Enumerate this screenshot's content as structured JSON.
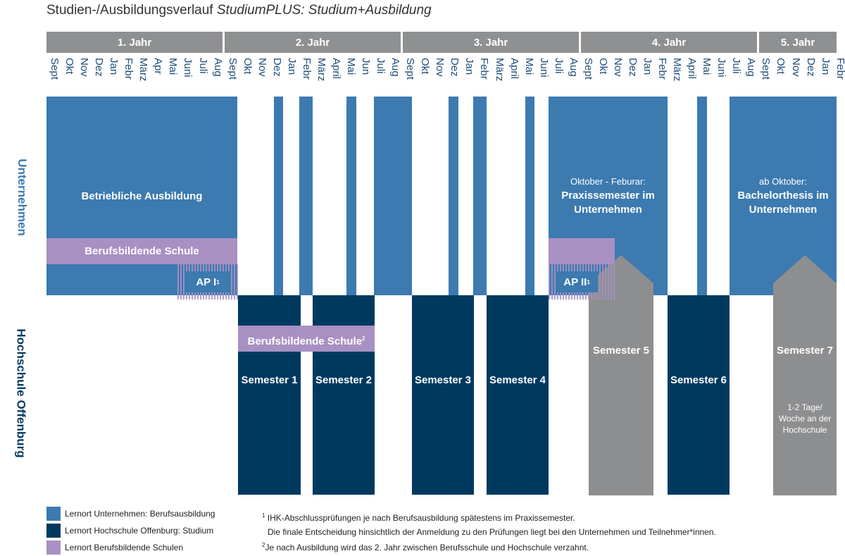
{
  "title": {
    "main": "Studien-/Ausbildungsverlauf ",
    "italic": "StudiumPLUS: Studium+Ausbildung"
  },
  "years": [
    "1. Jahr",
    "2. Jahr",
    "3. Jahr",
    "4. Jahr",
    "5. Jahr"
  ],
  "months": [
    "Sept",
    "Okt",
    "Nov",
    "Dez",
    "Jan",
    "Febr",
    "März",
    "Apr",
    "Mai",
    "Juni",
    "Juli",
    "Aug",
    "Sept",
    "Okt",
    "Nov",
    "Dez",
    "Jan",
    "Febr",
    "März",
    "April",
    "Mai",
    "Jun",
    "Juli",
    "Aug",
    "Sept",
    "Okt",
    "Nov",
    "Dez",
    "Jan",
    "Febr",
    "März",
    "April",
    "Mai",
    "Juni",
    "Juli",
    "Aug",
    "Sept",
    "Okt",
    "Nov",
    "Dez",
    "Jan",
    "Febr",
    "März",
    "April",
    "Mai",
    "Juni",
    "Juli",
    "Aug",
    "Sept",
    "Okt",
    "Nov",
    "Dez",
    "Jan",
    "Febr"
  ],
  "rows": {
    "company": "Unternehmen",
    "university": "Hochschule Offenburg"
  },
  "blocks": {
    "ausbildung": "Betriebliche Ausbildung",
    "berufsschule": "Berufsbildende Schule",
    "berufsschule2": "Berufsbildende Schule",
    "ap1": "AP I",
    "ap2": "AP II",
    "praxis_sub": "Oktober - Feburar:",
    "praxis": "Praxissemester im Unternehmen",
    "bachelor_sub": "ab Oktober:",
    "bachelor": "Bachelorthesis im Unternehmen",
    "sem1": "Semester 1",
    "sem2": "Semester 2",
    "sem3": "Semester 3",
    "sem4": "Semester 4",
    "sem5": "Semester 5",
    "sem6": "Semester 6",
    "sem7": "Semester 7",
    "sem7_note": "1-2 Tage/ Woche an der Hochschule"
  },
  "legend": [
    {
      "label": "Lernort Unternehmen: Berufsausbildung",
      "color": "#3c7ab0"
    },
    {
      "label": "Lernort Hochschule Offenburg: Studium",
      "color": "#003960"
    },
    {
      "label": "Lernort Berufsbildende Schulen",
      "color": "#a890c2"
    }
  ],
  "notes": {
    "n1a": "IHK-Abschlussprüfungen je nach Berufsausbildung spätestens im Praxissemester.",
    "n1b": "Die finale Entscheidung hinsichtlich der Anmeldung zu den Prüfungen liegt bei den Unternehmen und Teilnehmer*innen.",
    "n2": "Je nach Ausbildung wird das 2. Jahr zwischen Berufsschule und Hochschule verzahnt."
  },
  "colors": {
    "company": "#3c7ab0",
    "university": "#003960",
    "school": "#a890c2",
    "grey": "#8d8e90"
  }
}
